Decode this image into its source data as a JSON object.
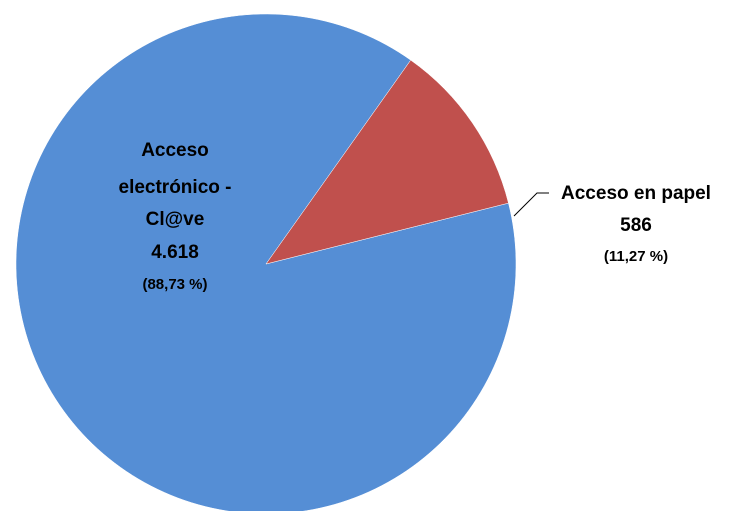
{
  "chart_data": {
    "type": "pie",
    "slices": [
      {
        "label_lines": [
          "Acceso",
          "electrónico -",
          "Cl@ve"
        ],
        "value": 4618,
        "value_text": "4.618",
        "percent": 88.73,
        "percent_text": "(88,73 %)",
        "color": "#558ED5"
      },
      {
        "label_lines": [
          "Acceso en papel"
        ],
        "value": 586,
        "value_text": "586",
        "percent": 11.27,
        "percent_text": "(11,27 %)",
        "color": "#C0504D"
      }
    ],
    "legend": "none",
    "label_style": "inside for large slice, leader line for small slice"
  }
}
